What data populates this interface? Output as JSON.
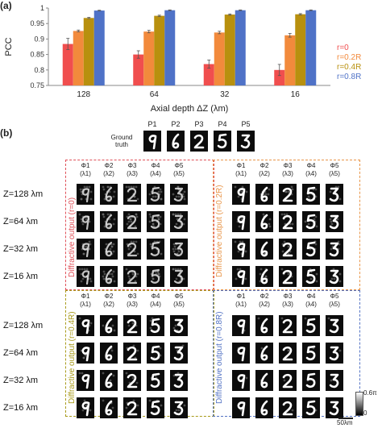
{
  "panel_a_label": "(a)",
  "panel_b_label": "(b)",
  "chart_data": {
    "type": "bar",
    "categories": [
      "128",
      "64",
      "32",
      "16"
    ],
    "xlabel": "Axial depth ΔZ (λm)",
    "ylabel": "PCC",
    "ylim": [
      0.75,
      1.0
    ],
    "yticks": [
      "0.75",
      "0.8",
      "0.85",
      "0.9",
      "0.95",
      "1"
    ],
    "grid": false,
    "legend_position": "right",
    "series": [
      {
        "name": "r=0",
        "color": "#f04e4e",
        "values": [
          0.884,
          0.85,
          0.819,
          0.8
        ],
        "errors": [
          0.018,
          0.012,
          0.013,
          0.018
        ]
      },
      {
        "name": "r=0.2R",
        "color": "#f28a3c",
        "values": [
          0.926,
          0.924,
          0.921,
          0.912
        ],
        "errors": [
          0.003,
          0.004,
          0.004,
          0.006
        ]
      },
      {
        "name": "r=0.4R",
        "color": "#b8900e",
        "values": [
          0.968,
          0.975,
          0.979,
          0.98
        ],
        "errors": [
          0.002,
          0.002,
          0.002,
          0.002
        ]
      },
      {
        "name": "r=0.8R",
        "color": "#4f72c7",
        "values": [
          0.992,
          0.993,
          0.993,
          0.993
        ],
        "errors": [
          0.001,
          0.001,
          0.001,
          0.001
        ]
      }
    ]
  },
  "ground_truth": {
    "label_line1": "Ground",
    "label_line2": "truth",
    "positions": [
      "P1",
      "P2",
      "P3",
      "P4",
      "P5"
    ],
    "digits": [
      "9",
      "6",
      "2",
      "5",
      "3"
    ]
  },
  "phase_headers": [
    "Φ1",
    "Φ2",
    "Φ3",
    "Φ4",
    "Φ5"
  ],
  "lambda_headers": [
    "(λ1)",
    "(λ2)",
    "(λ3)",
    "(λ4)",
    "(λ5)"
  ],
  "z_labels": [
    "Z=128 λm",
    "Z=64 λm",
    "Z=32 λm",
    "Z=16 λm"
  ],
  "boxes": [
    {
      "label": "Diffractive output (r=0)",
      "color": "#e0525a"
    },
    {
      "label": "Diffractive output (r=0.2R)",
      "color": "#e8964a"
    },
    {
      "label": "Diffractive output (r=0.4R)",
      "color": "#a89a1a"
    },
    {
      "label": "Diffractive output (r=0.8R)",
      "color": "#5574c4"
    }
  ],
  "colorbar": {
    "top": "0.6π",
    "bottom": "0"
  },
  "scalebar_label": "50λm"
}
